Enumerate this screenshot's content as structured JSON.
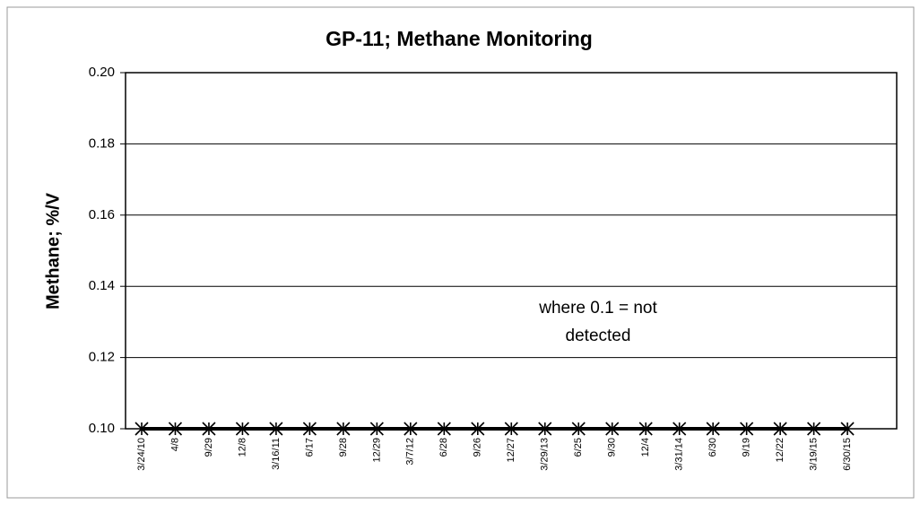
{
  "chart_data": {
    "type": "line",
    "title": "GP-11; Methane Monitoring",
    "y_label": "Methane; %/V",
    "annotation": [
      "where 0.1 = not",
      "detected"
    ],
    "categories": [
      "3/24/10",
      "4/8",
      "9/29",
      "12/8",
      "3/16/11",
      "6/17",
      "9/28",
      "12/29",
      "3/7/12",
      "6/28",
      "9/26",
      "12/27",
      "3/29/13",
      "6/25",
      "9/30",
      "12/4",
      "3/31/14",
      "6/30",
      "9/19",
      "12/22",
      "3/19/15",
      "6/30/15"
    ],
    "values": [
      0.1,
      0.1,
      0.1,
      0.1,
      0.1,
      0.1,
      0.1,
      0.1,
      0.1,
      0.1,
      0.1,
      0.1,
      0.1,
      0.1,
      0.1,
      0.1,
      0.1,
      0.1,
      0.1,
      0.1,
      0.1,
      0.1
    ],
    "color": "#000000",
    "ylim": [
      0.1,
      0.2
    ],
    "yticks": [
      {
        "value": 0.1,
        "label": "0.10"
      },
      {
        "value": 0.12,
        "label": "0.12"
      },
      {
        "value": 0.14,
        "label": "0.14"
      },
      {
        "value": 0.16,
        "label": "0.16"
      },
      {
        "value": 0.18,
        "label": "0.18"
      },
      {
        "value": 0.2,
        "label": "0.20"
      }
    ],
    "grid": true
  }
}
